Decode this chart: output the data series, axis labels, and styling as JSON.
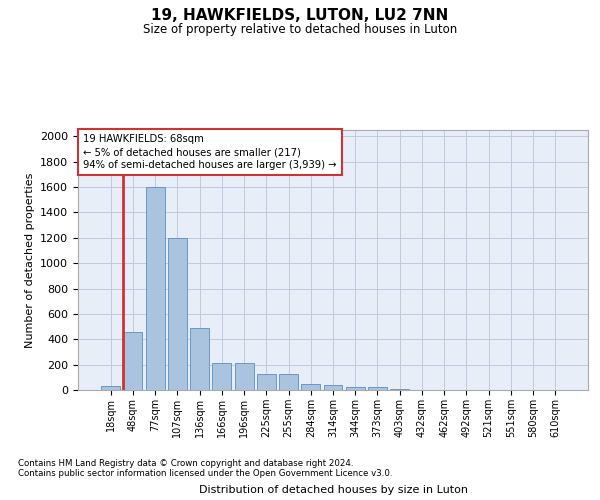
{
  "title": "19, HAWKFIELDS, LUTON, LU2 7NN",
  "subtitle": "Size of property relative to detached houses in Luton",
  "xlabel": "Distribution of detached houses by size in Luton",
  "ylabel": "Number of detached properties",
  "categories": [
    "18sqm",
    "48sqm",
    "77sqm",
    "107sqm",
    "136sqm",
    "166sqm",
    "196sqm",
    "225sqm",
    "255sqm",
    "284sqm",
    "314sqm",
    "344sqm",
    "373sqm",
    "403sqm",
    "432sqm",
    "462sqm",
    "492sqm",
    "521sqm",
    "551sqm",
    "580sqm",
    "610sqm"
  ],
  "values": [
    35,
    460,
    1600,
    1195,
    490,
    210,
    210,
    125,
    125,
    45,
    40,
    25,
    20,
    10,
    0,
    0,
    0,
    0,
    0,
    0,
    0
  ],
  "bar_color": "#aac4e0",
  "bar_edge_color": "#5a8fc0",
  "highlight_bar_index": 1,
  "highlight_color": "#cc3333",
  "ylim": [
    0,
    2050
  ],
  "yticks": [
    0,
    200,
    400,
    600,
    800,
    1000,
    1200,
    1400,
    1600,
    1800,
    2000
  ],
  "annotation_box_text": "19 HAWKFIELDS: 68sqm\n← 5% of detached houses are smaller (217)\n94% of semi-detached houses are larger (3,939) →",
  "annotation_box_color": "#cc3333",
  "background_color": "#e8eef8",
  "grid_color": "#c0c8e0",
  "footnote1": "Contains HM Land Registry data © Crown copyright and database right 2024.",
  "footnote2": "Contains public sector information licensed under the Open Government Licence v3.0."
}
